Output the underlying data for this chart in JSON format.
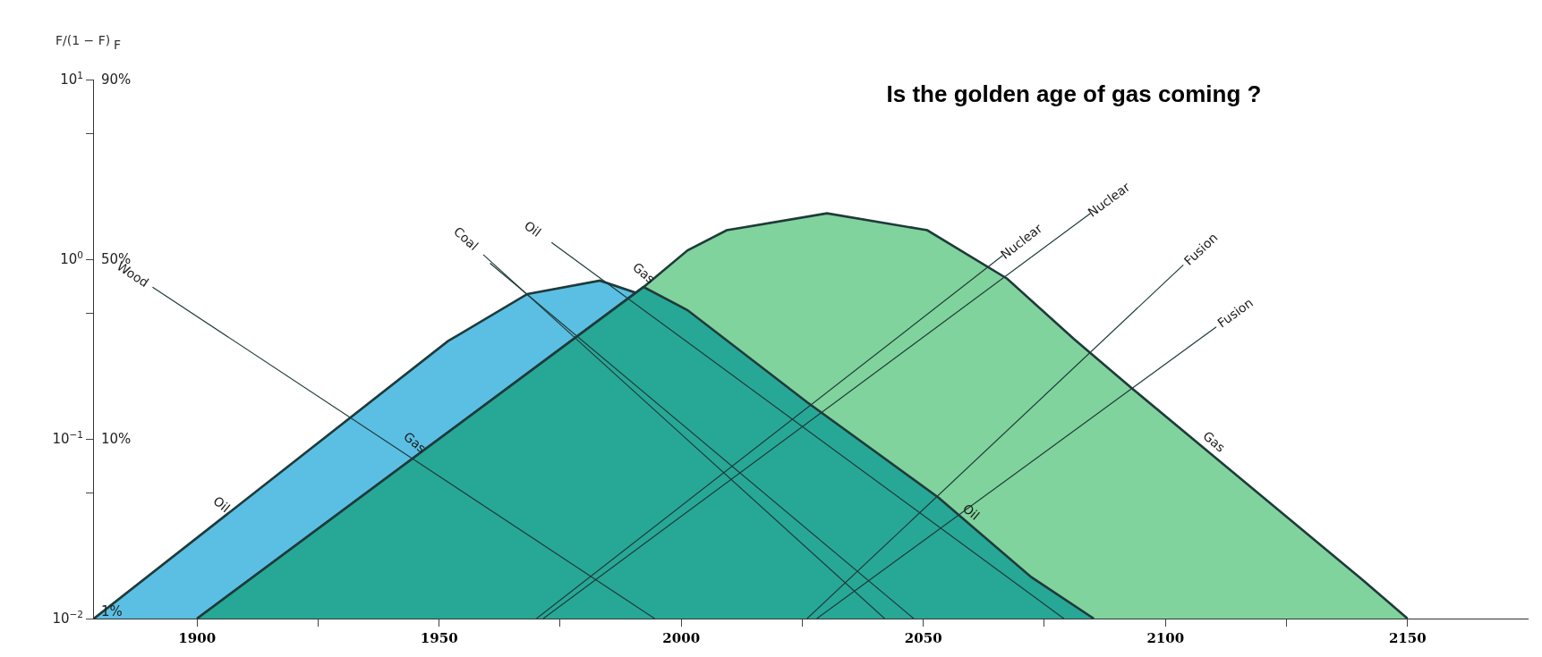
{
  "chart_data": {
    "type": "area",
    "title": "Is the golden age of gas coming ?",
    "ylabel": "F/(1 − F)",
    "log": "y",
    "legend": false,
    "marker": "none",
    "xlim": [
      1878.7,
      2175
    ],
    "xticks": [
      1900,
      {
        "value": 1925,
        "label": null
      },
      1950,
      {
        "value": 1975,
        "label": null
      },
      2000,
      {
        "value": 2025,
        "label": null
      },
      2050,
      {
        "value": 2075,
        "label": null
      },
      2100,
      {
        "value": 2125,
        "label": null
      },
      2150
    ],
    "ylim": [
      0.01,
      10
    ],
    "yticks": [
      {
        "value": 0.01,
        "label": "10$^{−2}$"
      },
      {
        "value": 0.05,
        "label": null
      },
      {
        "value": 0.1,
        "label": "10$^{−1}$"
      },
      {
        "value": 0.5,
        "label": null
      },
      {
        "value": 1,
        "label": "10$^{0}$"
      },
      {
        "value": 5,
        "label": null
      },
      {
        "value": 10,
        "label": "10$^{1}$"
      }
    ],
    "series": [
      {
        "color": "#5bbfe3",
        "x": [
          1878.7,
          1951.8,
          1968.2,
          1983.2,
          2001.3,
          2026,
          2053.2,
          2072.3,
          2085.2
        ],
        "values": [
          0.01,
          0.35,
          0.64,
          0.76,
          0.52,
          0.16,
          0.047,
          0.017,
          0.01
        ]
      },
      {
        "color": "#80d39c",
        "x": [
          1900,
          1992.2,
          2001.3,
          2009.4,
          2030.1,
          2050.8,
          2067.3,
          2081.1,
          2093.2,
          2140.5,
          2150
        ],
        "values": [
          0.01,
          0.7,
          1.12,
          1.45,
          1.8,
          1.45,
          0.78,
          0.36,
          0.19,
          0.0166,
          0.01
        ]
      },
      {
        "color": "#27a897",
        "x": [
          1900,
          1992.2,
          2001.3,
          2026,
          2053.2,
          2072.3,
          2085.2
        ],
        "values": [
          0.01,
          0.7,
          0.52,
          0.16,
          0.047,
          0.017,
          0.01
        ]
      },
      {
        "type": "line",
        "name": "Wood",
        "color": "#1f3a3a",
        "x": [
          1890.8,
          1994.5
        ],
        "values": [
          0.7,
          0.01
        ]
      },
      {
        "type": "line",
        "name": "Coal",
        "color": "#1f3a3a",
        "x": [
          1959.1,
          2042
        ],
        "values": [
          1.06,
          0.01
        ]
      },
      {
        "type": "line",
        "color": "#1f3a3a",
        "x": [
          1960.5,
          2048
        ],
        "values": [
          0.95,
          0.01
        ]
      },
      {
        "type": "line",
        "name": "Oil",
        "color": "#1f3a3a",
        "x": [
          1973.2,
          2079
        ],
        "values": [
          1.24,
          0.01
        ]
      },
      {
        "type": "line",
        "name": "Nuclear",
        "color": "#1f3a3a",
        "x": [
          1970.1,
          2066.4
        ],
        "values": [
          0.01,
          1.05
        ]
      },
      {
        "type": "line",
        "name": "Nuclear",
        "color": "#1f3a3a",
        "x": [
          1971.5,
          2084.5
        ],
        "values": [
          0.01,
          1.8
        ]
      },
      {
        "type": "line",
        "name": "Fusion",
        "color": "#1f3a3a",
        "x": [
          2026,
          2103.7
        ],
        "values": [
          0.01,
          0.93
        ]
      },
      {
        "type": "line",
        "name": "Fusion",
        "color": "#1f3a3a",
        "x": [
          2028,
          2110.5
        ],
        "values": [
          0.01,
          0.42
        ]
      }
    ],
    "annotations": [
      {
        "text": "Oil",
        "x": 1905,
        "y": 0.0359
      },
      {
        "text": "Gas",
        "x": 1945,
        "y": 0.0794
      },
      {
        "text": "Gas",
        "x": 1992.2,
        "y": 0.7
      },
      {
        "text": "Oil",
        "x": 2060,
        "y": 0.0327
      },
      {
        "text": "Gas",
        "x": 2110,
        "y": 0.08
      },
      "F",
      "90%",
      "50%",
      "10%",
      "1%"
    ]
  }
}
